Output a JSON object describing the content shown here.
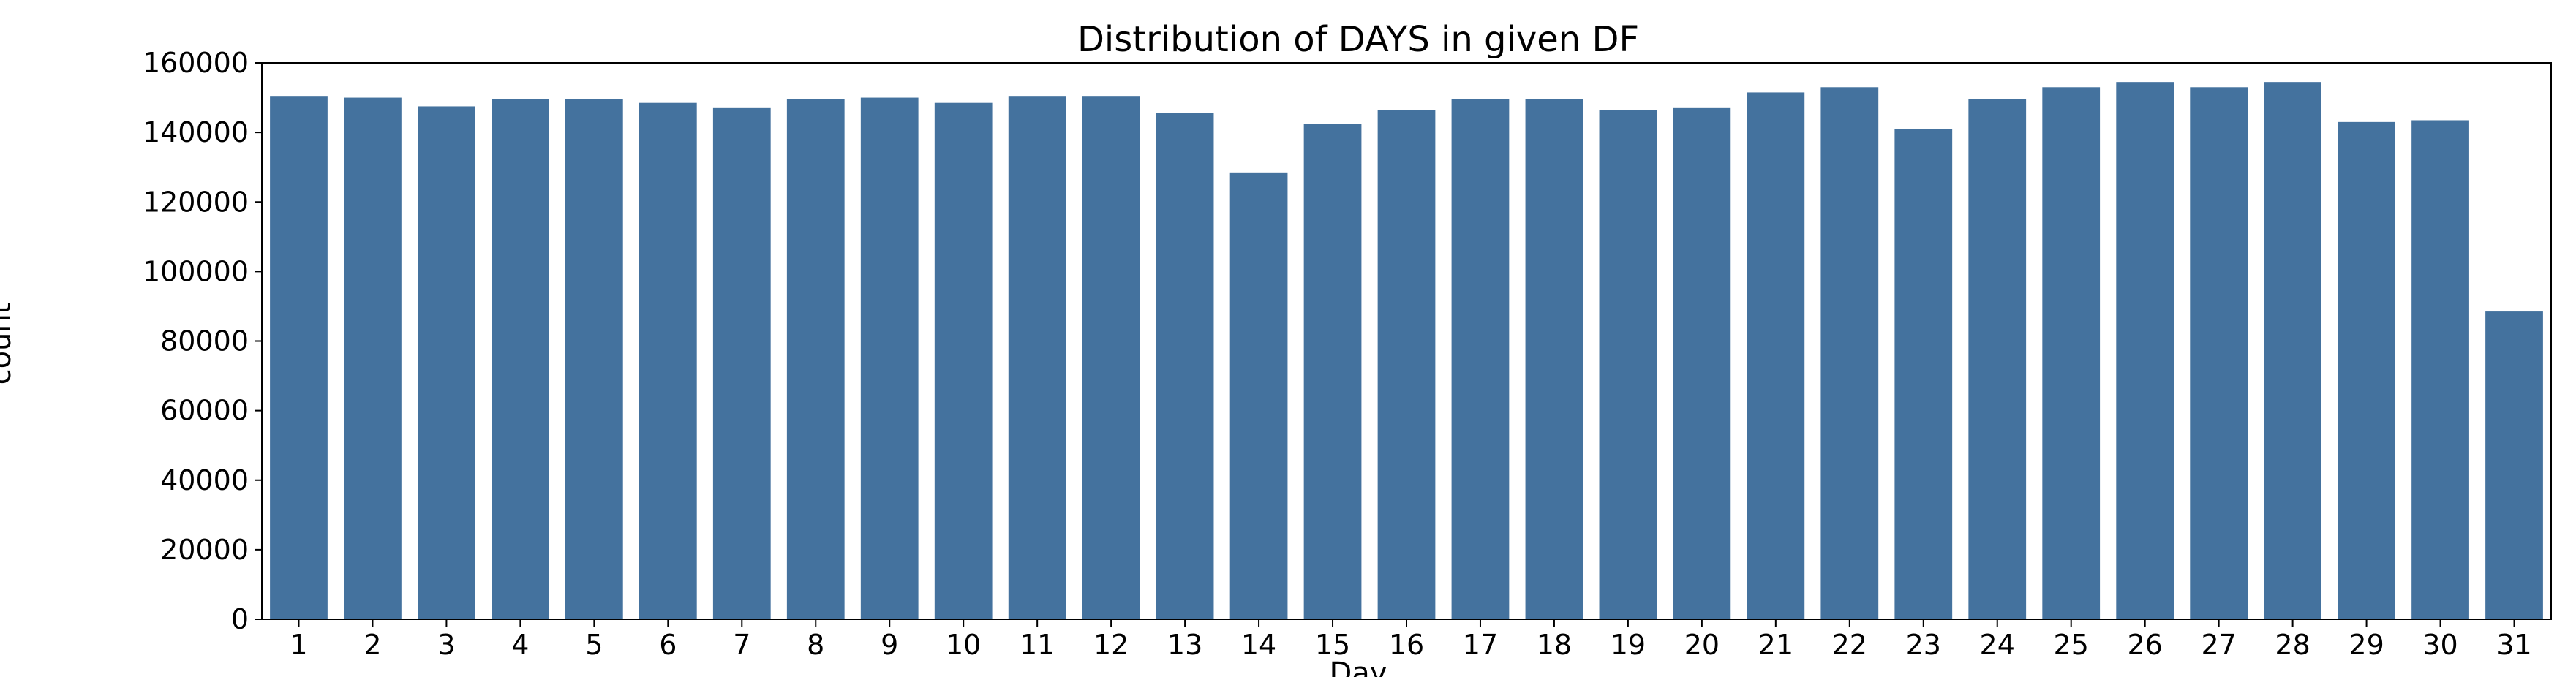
{
  "chart_data": {
    "type": "bar",
    "title": "Distribution of DAYS in given DF",
    "xlabel": "Day",
    "ylabel": "count",
    "categories": [
      "1",
      "2",
      "3",
      "4",
      "5",
      "6",
      "7",
      "8",
      "9",
      "10",
      "11",
      "12",
      "13",
      "14",
      "15",
      "16",
      "17",
      "18",
      "19",
      "20",
      "21",
      "22",
      "23",
      "24",
      "25",
      "26",
      "27",
      "28",
      "29",
      "30",
      "31"
    ],
    "values": [
      150500,
      150000,
      147500,
      149500,
      149500,
      148500,
      147000,
      149500,
      150000,
      148500,
      150500,
      150500,
      145500,
      128500,
      142500,
      146500,
      149500,
      149500,
      146500,
      147000,
      151500,
      153000,
      141000,
      149500,
      153000,
      154500,
      153000,
      154500,
      143000,
      143500,
      88500
    ],
    "ylim": [
      0,
      160000
    ],
    "yticks": [
      0,
      20000,
      40000,
      60000,
      80000,
      100000,
      120000,
      140000,
      160000
    ],
    "bar_color": "#44729e",
    "grid": false,
    "legend": "none"
  }
}
